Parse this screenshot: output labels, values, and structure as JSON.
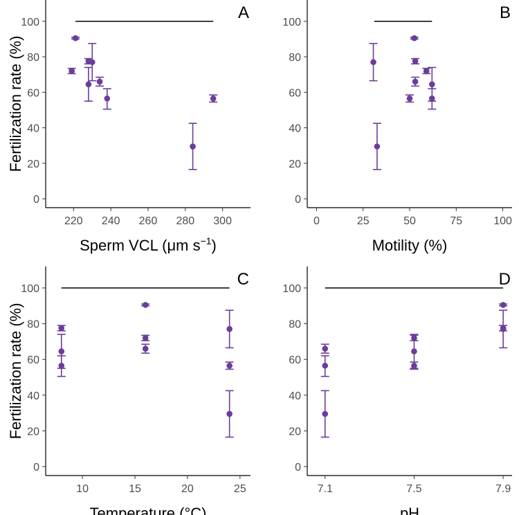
{
  "chart_data": [
    {
      "type": "scatter",
      "panel_label": "A",
      "xlabel": "Sperm VCL (μm s",
      "xlabel_sup": "−1",
      "xlabel_suffix": ")",
      "ylabel": "Fertilization rate (%)",
      "xlim": [
        205,
        315
      ],
      "ylim": [
        -5,
        112
      ],
      "x_ticks": [
        220,
        240,
        260,
        280,
        300
      ],
      "y_ticks": [
        0,
        20,
        40,
        60,
        80,
        100
      ],
      "x_tick_labels": [
        "220",
        "240",
        "260",
        "280",
        "300"
      ],
      "y_tick_labels": [
        "0",
        "20",
        "40",
        "60",
        "80",
        "100"
      ],
      "reference_line": {
        "y": 100,
        "x_start": 221,
        "x_end": 295
      },
      "points": [
        {
          "x": 219,
          "y": 72,
          "ymin": 70.5,
          "ymax": 73.5
        },
        {
          "x": 221,
          "y": 90.5,
          "ymin": 90,
          "ymax": 91
        },
        {
          "x": 228,
          "y": 77.5,
          "ymin": 76,
          "ymax": 79
        },
        {
          "x": 228,
          "y": 64.5,
          "ymin": 55,
          "ymax": 74
        },
        {
          "x": 230,
          "y": 77,
          "ymin": 66.5,
          "ymax": 87.5
        },
        {
          "x": 234,
          "y": 66,
          "ymin": 63.5,
          "ymax": 68.5
        },
        {
          "x": 238,
          "y": 56.5,
          "ymin": 50.5,
          "ymax": 62
        },
        {
          "x": 284,
          "y": 29.5,
          "ymin": 16.5,
          "ymax": 42.5
        },
        {
          "x": 295,
          "y": 56.5,
          "ymin": 54.5,
          "ymax": 58.5
        }
      ],
      "color": "#6a3d9a",
      "reference_color": "#000000"
    },
    {
      "type": "scatter",
      "panel_label": "B",
      "xlabel": "Motility (%)",
      "ylabel": "",
      "xlim": [
        -5,
        105
      ],
      "ylim": [
        -5,
        112
      ],
      "x_ticks": [
        0,
        25,
        50,
        75,
        100
      ],
      "y_ticks": [
        0,
        20,
        40,
        60,
        80,
        100
      ],
      "x_tick_labels": [
        "0",
        "25",
        "50",
        "75",
        "100"
      ],
      "y_tick_labels": [
        "0",
        "20",
        "40",
        "60",
        "80",
        "100"
      ],
      "reference_line": {
        "y": 100,
        "x_start": 31,
        "x_end": 62
      },
      "points": [
        {
          "x": 30.5,
          "y": 77,
          "ymin": 66.5,
          "ymax": 87.5
        },
        {
          "x": 32.5,
          "y": 29.5,
          "ymin": 16.5,
          "ymax": 42.5
        },
        {
          "x": 50,
          "y": 56.5,
          "ymin": 54.5,
          "ymax": 58.5
        },
        {
          "x": 52.5,
          "y": 90.5,
          "ymin": 90,
          "ymax": 91
        },
        {
          "x": 53,
          "y": 77.5,
          "ymin": 76,
          "ymax": 79
        },
        {
          "x": 53,
          "y": 66,
          "ymin": 63.5,
          "ymax": 68.5
        },
        {
          "x": 59,
          "y": 72,
          "ymin": 70.5,
          "ymax": 73.5
        },
        {
          "x": 62,
          "y": 64.5,
          "ymin": 55,
          "ymax": 74
        },
        {
          "x": 62,
          "y": 56.5,
          "ymin": 50.5,
          "ymax": 62
        }
      ],
      "color": "#6a3d9a",
      "reference_color": "#000000"
    },
    {
      "type": "scatter",
      "panel_label": "C",
      "xlabel": "Temperature (°C)",
      "ylabel": "Fertilization rate (%)",
      "xlim": [
        6.5,
        26.0
      ],
      "ylim": [
        -5,
        112
      ],
      "x_ticks": [
        10,
        15,
        20,
        25
      ],
      "y_ticks": [
        0,
        20,
        40,
        60,
        80,
        100
      ],
      "x_tick_labels": [
        "10",
        "15",
        "20",
        "25"
      ],
      "y_tick_labels": [
        "0",
        "20",
        "40",
        "60",
        "80",
        "100"
      ],
      "reference_line": {
        "y": 100,
        "x_start": 8,
        "x_end": 24
      },
      "points": [
        {
          "x": 8,
          "y": 77.5,
          "ymin": 76,
          "ymax": 79
        },
        {
          "x": 8,
          "y": 64.5,
          "ymin": 55,
          "ymax": 74
        },
        {
          "x": 8,
          "y": 56.5,
          "ymin": 50.5,
          "ymax": 62
        },
        {
          "x": 16,
          "y": 90.5,
          "ymin": 90,
          "ymax": 91
        },
        {
          "x": 16,
          "y": 72,
          "ymin": 70.5,
          "ymax": 73.5
        },
        {
          "x": 16,
          "y": 66,
          "ymin": 63.5,
          "ymax": 68.5
        },
        {
          "x": 24,
          "y": 77,
          "ymin": 66.5,
          "ymax": 87.5
        },
        {
          "x": 24,
          "y": 56.5,
          "ymin": 54.5,
          "ymax": 58.5
        },
        {
          "x": 24,
          "y": 29.5,
          "ymin": 16.5,
          "ymax": 42.5
        }
      ],
      "color": "#6a3d9a",
      "reference_color": "#000000"
    },
    {
      "type": "scatter",
      "panel_label": "D",
      "xlabel": "pH",
      "ylabel": "",
      "xlim": [
        7.02,
        7.94
      ],
      "ylim": [
        -5,
        112
      ],
      "x_ticks": [
        7.1,
        7.5,
        7.9
      ],
      "y_ticks": [
        0,
        20,
        40,
        60,
        80,
        100
      ],
      "x_tick_labels": [
        "7.1",
        "7.5",
        "7.9"
      ],
      "y_tick_labels": [
        "0",
        "20",
        "40",
        "60",
        "80",
        "100"
      ],
      "reference_line": {
        "y": 100,
        "x_start": 7.1,
        "x_end": 7.9
      },
      "points": [
        {
          "x": 7.1,
          "y": 66,
          "ymin": 63.5,
          "ymax": 68.5
        },
        {
          "x": 7.1,
          "y": 56.5,
          "ymin": 50.5,
          "ymax": 62
        },
        {
          "x": 7.1,
          "y": 29.5,
          "ymin": 16.5,
          "ymax": 42.5
        },
        {
          "x": 7.5,
          "y": 72,
          "ymin": 70.5,
          "ymax": 73.5
        },
        {
          "x": 7.5,
          "y": 64.5,
          "ymin": 55,
          "ymax": 74
        },
        {
          "x": 7.5,
          "y": 56.5,
          "ymin": 54.5,
          "ymax": 58.5
        },
        {
          "x": 7.9,
          "y": 90.5,
          "ymin": 90,
          "ymax": 91
        },
        {
          "x": 7.9,
          "y": 77.5,
          "ymin": 76,
          "ymax": 79
        },
        {
          "x": 7.9,
          "y": 77,
          "ymin": 66.5,
          "ymax": 87.5
        }
      ],
      "color": "#6a3d9a",
      "reference_color": "#000000"
    }
  ]
}
